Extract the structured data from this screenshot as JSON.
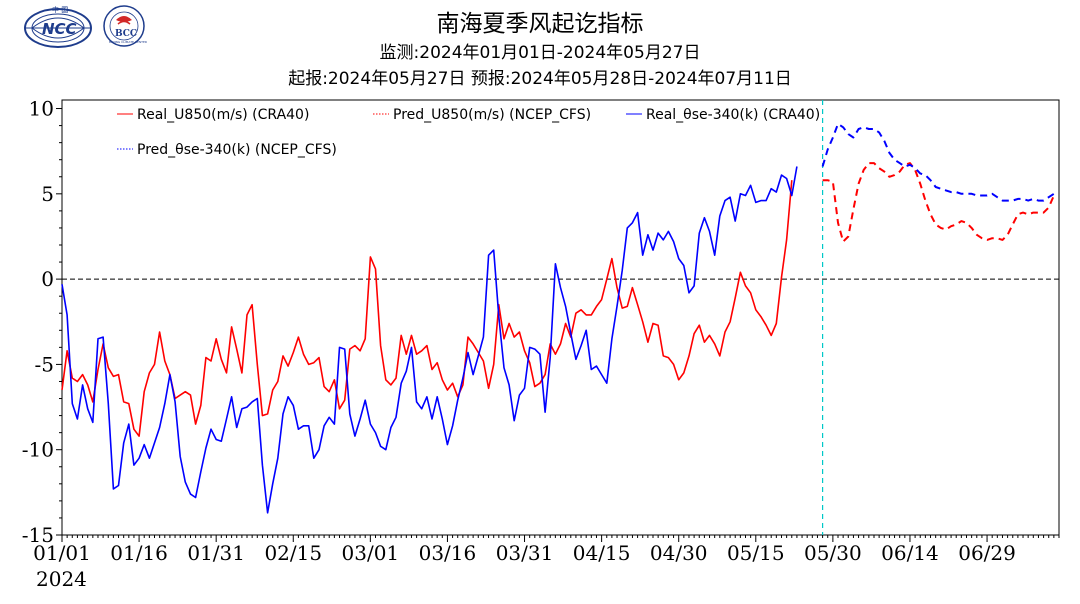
{
  "header": {
    "title": "南海夏季风起讫指标",
    "monitor_line": "监测:2024年01月01日-2024年05月27日",
    "forecast_line": "起报:2024年05月27日 预报:2024年05月28日-2024年07月11日"
  },
  "logos": {
    "left_text": "NCC",
    "left_top_text": "中 国",
    "right_text": "BCC",
    "right_ring_text": "BEIJING CLIMATE CENTER"
  },
  "chart_data": {
    "type": "line",
    "title": "南海夏季风起讫指标",
    "x_tick_labels": [
      "01/01",
      "01/16",
      "01/31",
      "02/15",
      "03/01",
      "03/16",
      "03/31",
      "04/15",
      "04/30",
      "05/15",
      "05/30",
      "06/14",
      "06/29"
    ],
    "x_year_label": "2024",
    "x_range_days": [
      0,
      194
    ],
    "y_tick_labels": [
      "10",
      "5",
      "0",
      "-5",
      "-10",
      "-15"
    ],
    "ylim": [
      -15,
      10.5
    ],
    "forecast_start_day": 148,
    "zero_line": true,
    "legend_position": "top-left",
    "colors": {
      "red": "#ff0000",
      "blue": "#0000ff",
      "cyan": "#00c8c8"
    },
    "series": [
      {
        "name": "Real_U850(m/s) (CRA40)",
        "color": "#ff0000",
        "style": "solid",
        "start_day": 0,
        "values": [
          -6.5,
          -4.2,
          -5.8,
          -6.0,
          -5.6,
          -6.2,
          -7.2,
          -5.3,
          -3.8,
          -5.2,
          -5.7,
          -5.6,
          -7.2,
          -7.3,
          -8.8,
          -9.2,
          -6.6,
          -5.5,
          -5.0,
          -3.1,
          -4.8,
          -5.6,
          -7.0,
          -6.8,
          -6.6,
          -6.8,
          -8.5,
          -7.4,
          -4.6,
          -4.8,
          -3.5,
          -4.7,
          -5.5,
          -2.8,
          -4.1,
          -5.5,
          -2.1,
          -1.5,
          -5.0,
          -8.0,
          -7.9,
          -6.5,
          -6.0,
          -4.5,
          -5.1,
          -4.3,
          -3.4,
          -4.4,
          -5.0,
          -4.9,
          -4.6,
          -6.3,
          -6.6,
          -5.9,
          -7.6,
          -7.1,
          -4.1,
          -3.9,
          -4.2,
          -3.5,
          1.3,
          0.6,
          -3.9,
          -5.9,
          -6.2,
          -5.8,
          -3.3,
          -4.4,
          -3.3,
          -4.4,
          -4.2,
          -3.9,
          -5.3,
          -4.9,
          -5.9,
          -6.5,
          -6.1,
          -6.9,
          -6.2,
          -3.4,
          -3.8,
          -4.3,
          -4.8,
          -6.4,
          -5.0,
          -1.5,
          -3.5,
          -2.6,
          -3.4,
          -3.1,
          -4.2,
          -4.9,
          -6.3,
          -6.1,
          -5.6,
          -3.8,
          -4.4,
          -3.8,
          -2.6,
          -3.4,
          -2.0,
          -1.8,
          -2.1,
          -2.1,
          -1.6,
          -1.2,
          0.0,
          1.2,
          -0.5,
          -1.7,
          -1.6,
          -0.5,
          -1.5,
          -2.5,
          -3.7,
          -2.6,
          -2.7,
          -4.5,
          -4.6,
          -5.0,
          -5.9,
          -5.5,
          -4.5,
          -3.2,
          -2.7,
          -3.7,
          -3.3,
          -3.8,
          -4.5,
          -3.1,
          -2.5,
          -1.1,
          0.4,
          -0.4,
          -0.8,
          -1.8,
          -2.2,
          -2.7,
          -3.3,
          -2.6,
          0.1,
          2.3,
          5.8
        ]
      },
      {
        "name": "Pred_U850(m/s) (NCEP_CFS)",
        "color": "#ff0000",
        "style": "dashed",
        "start_day": 148,
        "values": [
          5.8,
          5.8,
          5.7,
          3.3,
          2.2,
          2.5,
          4.1,
          5.6,
          6.4,
          6.8,
          6.8,
          6.5,
          6.3,
          6.0,
          6.1,
          6.3,
          6.7,
          6.8,
          6.4,
          5.6,
          4.6,
          3.8,
          3.2,
          3.0,
          2.9,
          3.1,
          3.2,
          3.4,
          3.3,
          3.0,
          2.6,
          2.4,
          2.3,
          2.4,
          2.4,
          2.3,
          2.6,
          3.2,
          3.8,
          3.9,
          3.8,
          3.9,
          3.9,
          3.9,
          4.2,
          4.9
        ]
      },
      {
        "name": "Real_θse-340(k) (CRA40)",
        "color": "#0000ff",
        "style": "solid",
        "start_day": 0,
        "values": [
          -0.3,
          -2.1,
          -7.3,
          -8.2,
          -6.2,
          -7.6,
          -8.4,
          -3.5,
          -3.4,
          -7.3,
          -12.3,
          -12.1,
          -9.6,
          -8.5,
          -10.9,
          -10.5,
          -9.7,
          -10.5,
          -9.6,
          -8.7,
          -7.3,
          -5.6,
          -7.2,
          -10.4,
          -11.9,
          -12.6,
          -12.8,
          -11.3,
          -9.9,
          -8.8,
          -9.4,
          -9.5,
          -8.2,
          -6.9,
          -8.7,
          -7.6,
          -7.5,
          -7.2,
          -7.0,
          -10.9,
          -13.7,
          -12.0,
          -10.5,
          -7.9,
          -6.9,
          -7.4,
          -8.8,
          -8.6,
          -8.6,
          -10.5,
          -10.0,
          -8.6,
          -8.1,
          -8.5,
          -4.0,
          -4.1,
          -7.9,
          -9.2,
          -8.2,
          -7.1,
          -8.5,
          -9.0,
          -9.8,
          -10.0,
          -8.7,
          -8.1,
          -6.1,
          -5.4,
          -4.0,
          -7.2,
          -7.6,
          -6.9,
          -8.2,
          -6.9,
          -8.2,
          -9.7,
          -8.6,
          -7.1,
          -5.8,
          -4.3,
          -5.6,
          -4.5,
          -3.4,
          1.4,
          1.7,
          -2.2,
          -5.2,
          -6.2,
          -8.3,
          -6.8,
          -6.4,
          -4.0,
          -4.1,
          -4.4,
          -7.8,
          -4.6,
          0.9,
          -0.5,
          -1.6,
          -3.2,
          -4.7,
          -3.9,
          -3.0,
          -5.3,
          -5.1,
          -5.6,
          -6.1,
          -3.5,
          -1.6,
          0.5,
          3.0,
          3.3,
          3.9,
          1.4,
          2.6,
          1.7,
          2.7,
          2.3,
          2.8,
          2.2,
          1.2,
          0.8,
          -0.8,
          -0.4,
          2.7,
          3.6,
          2.8,
          1.4,
          3.7,
          4.6,
          4.8,
          3.4,
          5.0,
          4.9,
          5.5,
          4.5,
          4.6,
          4.6,
          5.3,
          5.1,
          6.1,
          5.9,
          4.9,
          6.6
        ]
      },
      {
        "name": "Pred_θse-340(k) (NCEP_CFS)",
        "color": "#0000ff",
        "style": "dashed",
        "start_day": 148,
        "values": [
          6.6,
          7.6,
          8.3,
          9.1,
          8.9,
          8.5,
          8.3,
          8.8,
          8.9,
          8.8,
          8.8,
          8.6,
          8.1,
          7.4,
          7.0,
          6.8,
          6.6,
          6.7,
          6.5,
          6.2,
          6.1,
          5.8,
          5.4,
          5.3,
          5.2,
          5.1,
          5.1,
          5.0,
          5.0,
          5.0,
          4.9,
          4.9,
          4.9,
          5.0,
          4.8,
          4.6,
          4.6,
          4.6,
          4.7,
          4.7,
          4.6,
          4.7,
          4.6,
          4.6,
          4.8,
          5.0
        ]
      }
    ]
  }
}
